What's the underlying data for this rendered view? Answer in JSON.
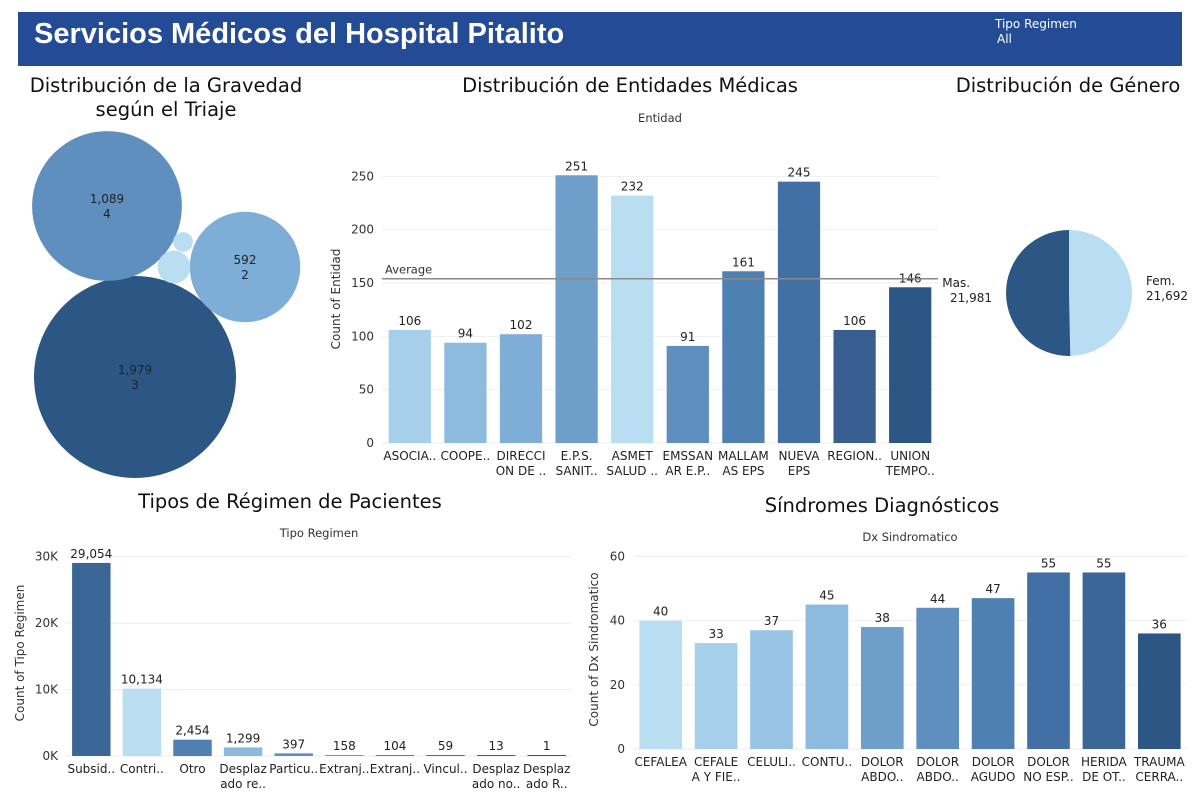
{
  "header": {
    "title": "Servicios Médicos del Hospital Pitalito",
    "filter_label": "Tipo Regimen",
    "filter_value": "All"
  },
  "colors": {
    "header_bg": "#234b96",
    "palette": [
      "#b9ddf1",
      "#a6cfeb",
      "#8dbadf",
      "#6e9fca",
      "#5e8fbe",
      "#4f80b2",
      "#426fa4",
      "#395f91",
      "#2c5784"
    ]
  },
  "titles": {
    "triage": "Distribución de la Gravedad según el Triaje",
    "entities": "Distribución de Entidades Médicas",
    "gender": "Distribución de Género",
    "regime": "Tipos de Régimen de Pacientes",
    "syndromes": "Síndromes Diagnósticos"
  },
  "chart_data": [
    {
      "id": "triage",
      "type": "bubble",
      "title": "Distribución de la Gravedad según el Triaje",
      "bubbles": [
        {
          "value": 1979,
          "label": "1,979",
          "triage": "3"
        },
        {
          "value": 1089,
          "label": "1,089",
          "triage": "4"
        },
        {
          "value": 592,
          "label": "592",
          "triage": "2"
        },
        {
          "value": 52,
          "label": "",
          "triage": ""
        },
        {
          "value": 19,
          "label": "",
          "triage": ""
        }
      ]
    },
    {
      "id": "entities",
      "type": "bar",
      "title": "Distribución de Entidades Médicas",
      "header": "Entidad",
      "ylabel": "Count of Entidad",
      "ylim": [
        0,
        270
      ],
      "yticks": [
        0,
        50,
        100,
        150,
        200,
        250
      ],
      "average": 154,
      "average_label": "Average",
      "categories": [
        [
          "ASOCIA.."
        ],
        [
          "COOPE.."
        ],
        [
          "DIRECCI",
          "ON DE .."
        ],
        [
          "E.P.S.",
          "SANIT.."
        ],
        [
          "ASMET",
          "SALUD .."
        ],
        [
          "EMSSAN",
          "AR E.P.."
        ],
        [
          "MALLAM",
          "AS EPS"
        ],
        [
          "NUEVA",
          "EPS"
        ],
        [
          "REGION.."
        ],
        [
          "UNION",
          "TEMPO.."
        ]
      ],
      "values": [
        106,
        94,
        102,
        251,
        232,
        91,
        161,
        245,
        106,
        146
      ],
      "labels": [
        "106",
        "94",
        "102",
        "251",
        "232",
        "91",
        "161",
        "245",
        "106",
        "146"
      ],
      "colors": [
        "#a6cfeb",
        "#8dbadf",
        "#7eaed7",
        "#6e9fca",
        "#b9ddf1",
        "#5e8fbe",
        "#4f80b2",
        "#426fa4",
        "#395f91",
        "#2c5784"
      ]
    },
    {
      "id": "gender",
      "type": "pie",
      "title": "Distribución de Género",
      "slices": [
        {
          "name": "Fem.",
          "value": 21692,
          "label": "21,692",
          "color": "#b9ddf1"
        },
        {
          "name": "Mas.",
          "value": 21981,
          "label": "21,981",
          "color": "#2c5784"
        }
      ]
    },
    {
      "id": "regime",
      "type": "bar",
      "title": "Tipos de Régimen de Pacientes",
      "header": "Tipo Regimen",
      "ylabel": "Count of Tipo Regimen",
      "ylim": [
        0,
        31000
      ],
      "yticks": [
        0,
        10000,
        20000,
        30000
      ],
      "ytick_labels": [
        "0K",
        "10K",
        "20K",
        "30K"
      ],
      "categories": [
        [
          "Subsid.."
        ],
        [
          "Contri.."
        ],
        [
          "Otro"
        ],
        [
          "Desplaz",
          "ado re.."
        ],
        [
          "Particu.."
        ],
        [
          "Extranj.."
        ],
        [
          "Extranj.."
        ],
        [
          "Vincul.."
        ],
        [
          "Desplaz",
          "ado no.."
        ],
        [
          "Desplaz",
          "ado R.."
        ]
      ],
      "values": [
        29054,
        10134,
        2454,
        1299,
        397,
        158,
        104,
        59,
        13,
        1
      ],
      "labels": [
        "29,054",
        "10,134",
        "2,454",
        "1,299",
        "397",
        "158",
        "104",
        "59",
        "13",
        "1"
      ],
      "colors": [
        "#3b6796",
        "#b9ddf1",
        "#4f80b2",
        "#8dbadf",
        "#5e8fbe",
        "#6e9fca",
        "#4f80b2",
        "#426fa4",
        "#395f91",
        "#2c5784"
      ]
    },
    {
      "id": "syndromes",
      "type": "bar",
      "title": "Síndromes Diagnósticos",
      "header": "Dx Sindromatico",
      "ylabel": "Count of Dx Sindromatico",
      "ylim": [
        0,
        62
      ],
      "yticks": [
        0,
        20,
        40,
        60
      ],
      "categories": [
        [
          "CEFALEA"
        ],
        [
          "CEFALE",
          "A Y FIE.."
        ],
        [
          "CELULI.."
        ],
        [
          "CONTU.."
        ],
        [
          "DOLOR",
          "ABDO.."
        ],
        [
          "DOLOR",
          "ABDO.."
        ],
        [
          "DOLOR",
          "AGUDO"
        ],
        [
          "DOLOR",
          "NO ESP.."
        ],
        [
          "HERIDA",
          "DE OT.."
        ],
        [
          "TRAUMA",
          "CERRA.."
        ]
      ],
      "values": [
        40,
        33,
        37,
        45,
        38,
        44,
        47,
        55,
        55,
        36
      ],
      "labels": [
        "40",
        "33",
        "37",
        "45",
        "38",
        "44",
        "47",
        "55",
        "55",
        "36"
      ],
      "colors": [
        "#b9ddf1",
        "#a6cfeb",
        "#98c4e6",
        "#8dbadf",
        "#6e9fca",
        "#5e8fbe",
        "#4f80b2",
        "#426fa4",
        "#3b6796",
        "#2c5784"
      ]
    }
  ]
}
